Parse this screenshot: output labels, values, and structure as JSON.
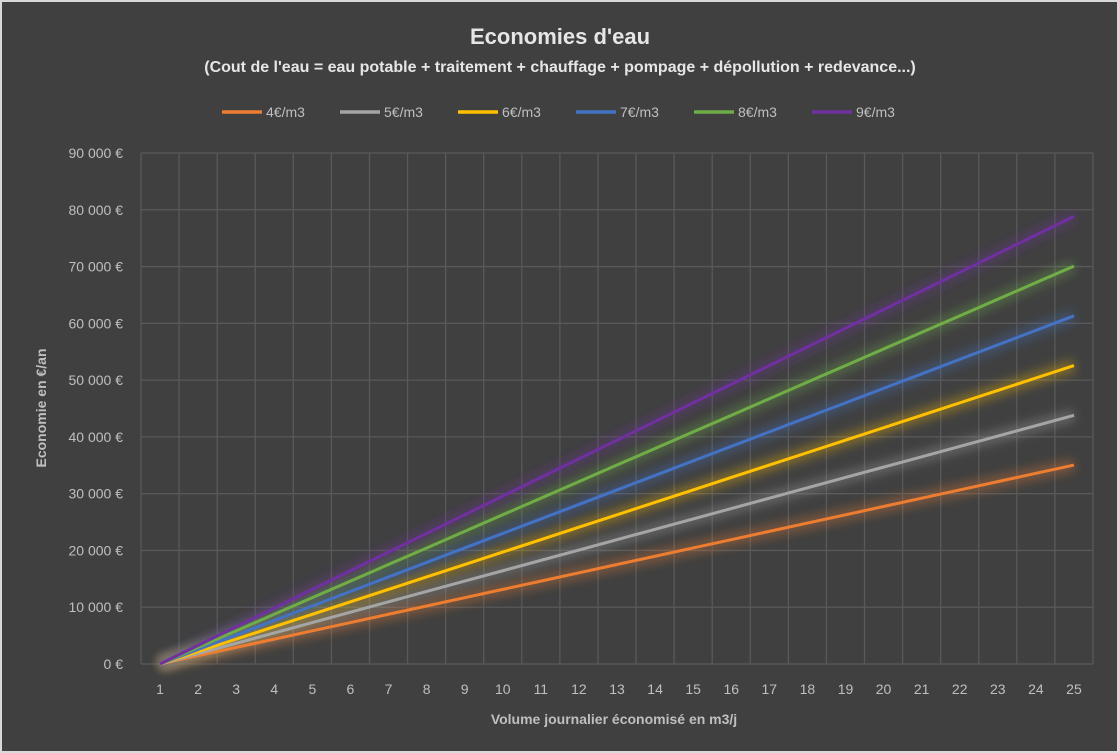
{
  "chart_data": {
    "type": "line",
    "title": "Economies d'eau",
    "subtitle": "(Cout de l'eau = eau potable + traitement + chauffage + pompage + dépollution + redevance...)",
    "xlabel": "Volume journalier économisé en m3/j",
    "ylabel": "Economie en €/an",
    "ylim": [
      0,
      90000
    ],
    "grid": true,
    "legend_position": "top",
    "x": [
      1,
      2,
      3,
      4,
      5,
      6,
      7,
      8,
      9,
      10,
      11,
      12,
      13,
      14,
      15,
      16,
      17,
      18,
      19,
      20,
      21,
      22,
      23,
      24,
      25
    ],
    "y_ticks": [
      {
        "value": 0,
        "label": "0 €"
      },
      {
        "value": 10000,
        "label": "10 000 €"
      },
      {
        "value": 20000,
        "label": "20 000 €"
      },
      {
        "value": 30000,
        "label": "30 000 €"
      },
      {
        "value": 40000,
        "label": "40 000 €"
      },
      {
        "value": 50000,
        "label": "50 000 €"
      },
      {
        "value": 60000,
        "label": "60 000 €"
      },
      {
        "value": 70000,
        "label": "70 000 €"
      },
      {
        "value": 80000,
        "label": "80 000 €"
      },
      {
        "value": 90000,
        "label": "90 000 €"
      }
    ],
    "series": [
      {
        "name": "4€/m3",
        "color": "#ED7D31",
        "values": [
          0,
          1460,
          2920,
          4380,
          5840,
          7300,
          8760,
          10220,
          11680,
          13140,
          14600,
          16060,
          17520,
          18980,
          20440,
          21900,
          23360,
          24820,
          26280,
          27740,
          29200,
          30660,
          32120,
          33580,
          35040
        ]
      },
      {
        "name": "5€/m3",
        "color": "#A5A5A5",
        "values": [
          0,
          1825,
          3650,
          5475,
          7300,
          9125,
          10950,
          12775,
          14600,
          16425,
          18250,
          20075,
          21900,
          23725,
          25550,
          27375,
          29200,
          31025,
          32850,
          34675,
          36500,
          38325,
          40150,
          41975,
          43800
        ]
      },
      {
        "name": "6€/m3",
        "color": "#FFC000",
        "values": [
          0,
          2190,
          4380,
          6570,
          8760,
          10950,
          13140,
          15330,
          17520,
          19710,
          21900,
          24090,
          26280,
          28470,
          30660,
          32850,
          35040,
          37230,
          39420,
          41610,
          43800,
          45990,
          48180,
          50370,
          52560
        ]
      },
      {
        "name": "7€/m3",
        "color": "#4472C4",
        "values": [
          0,
          2555,
          5110,
          7665,
          10220,
          12775,
          15330,
          17885,
          20440,
          22995,
          25550,
          28105,
          30660,
          33215,
          35770,
          38325,
          40880,
          43435,
          45990,
          48545,
          51100,
          53655,
          56210,
          58765,
          61320
        ]
      },
      {
        "name": "8€/m3",
        "color": "#70AD47",
        "values": [
          0,
          2920,
          5840,
          8760,
          11680,
          14600,
          17520,
          20440,
          23360,
          26280,
          29200,
          32120,
          35040,
          37960,
          40880,
          43800,
          46720,
          49640,
          52560,
          55480,
          58400,
          61320,
          64240,
          67160,
          70080
        ]
      },
      {
        "name": "9€/m3",
        "color": "#7030A0",
        "values": [
          0,
          3285,
          6570,
          9855,
          13140,
          16425,
          19710,
          22995,
          26280,
          29565,
          32850,
          36135,
          39420,
          42705,
          45990,
          49275,
          52560,
          55845,
          59130,
          62415,
          65700,
          68985,
          72270,
          75555,
          78840
        ]
      }
    ]
  }
}
